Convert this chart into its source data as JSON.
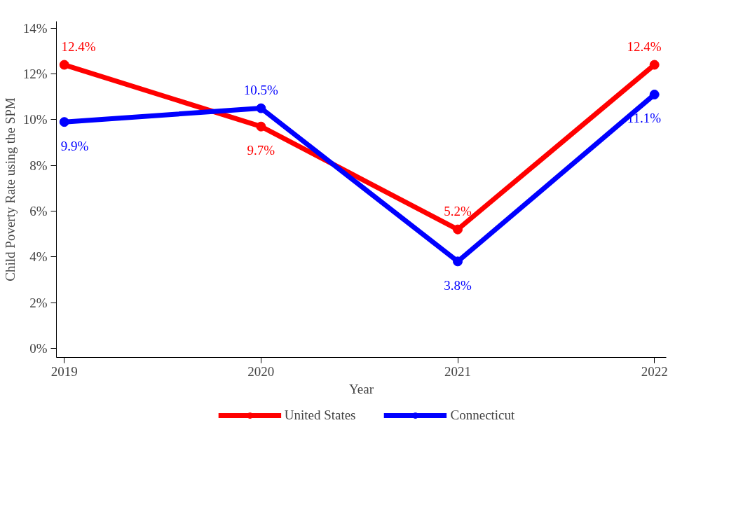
{
  "chart_data": {
    "type": "line",
    "xlabel": "Year",
    "ylabel": "Child Poverty Rate using the SPM",
    "x": [
      2019,
      2020,
      2021,
      2022
    ],
    "series": [
      {
        "name": "United States",
        "color": "#ff0000",
        "values": [
          12.4,
          9.7,
          5.2,
          12.4
        ],
        "value_labels": [
          "12.4%",
          "9.7%",
          "5.2%",
          "12.4%"
        ]
      },
      {
        "name": "Connecticut",
        "color": "#0000ff",
        "values": [
          9.9,
          10.5,
          3.8,
          11.1
        ],
        "value_labels": [
          "9.9%",
          "10.5%",
          "3.8%",
          "11.1%"
        ]
      }
    ],
    "xlim": [
      2018.96,
      2022.06
    ],
    "xticks": [
      2019,
      2020,
      2021,
      2022
    ],
    "ylim": [
      -0.4,
      14.3
    ],
    "yticks": [
      {
        "value": 0,
        "label": "0%"
      },
      {
        "value": 2,
        "label": "2%"
      },
      {
        "value": 4,
        "label": "4%"
      },
      {
        "value": 6,
        "label": "6%"
      },
      {
        "value": 8,
        "label": "8%"
      },
      {
        "value": 10,
        "label": "10%"
      },
      {
        "value": 12,
        "label": "12%"
      },
      {
        "value": 14,
        "label": "14%"
      }
    ],
    "grid": false,
    "legend": "bottom",
    "marker": "circle",
    "line_style": "solid"
  }
}
